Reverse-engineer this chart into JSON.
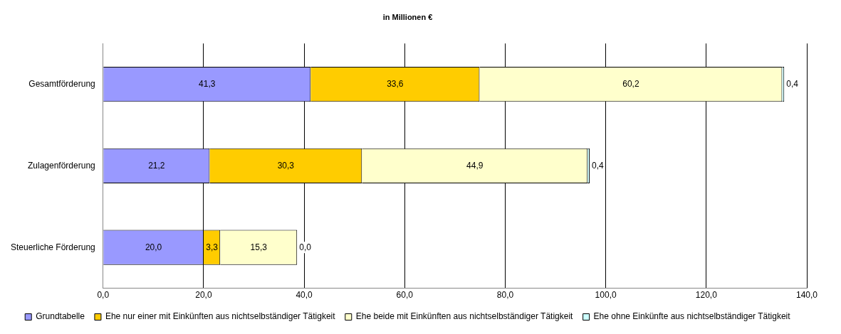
{
  "chart_data": {
    "type": "bar",
    "title": "in Millionen €",
    "orientation": "horizontal",
    "stacked": true,
    "categories": [
      "Gesamtförderung",
      "Zulagenförderung",
      "Steuerliche Förderung"
    ],
    "series": [
      {
        "name": "Grundtabelle",
        "color": "#9999ff",
        "values": [
          41.3,
          21.2,
          20.0
        ],
        "value_labels": [
          "41,3",
          "21,2",
          "20,0"
        ]
      },
      {
        "name": "Ehe nur einer mit Einkünften aus nichtselbständiger Tätigkeit",
        "color": "#ffcc00",
        "values": [
          33.6,
          30.3,
          3.3
        ],
        "value_labels": [
          "33,6",
          "30,3",
          "3,3"
        ]
      },
      {
        "name": "Ehe beide mit Einkünften aus nichtselbständiger Tätigkeit",
        "color": "#ffffcc",
        "values": [
          60.2,
          44.9,
          15.3
        ],
        "value_labels": [
          "60,2",
          "44,9",
          "15,3"
        ]
      },
      {
        "name": "Ehe ohne Einkünfte aus nichtselbständiger Tätigkeit",
        "color": "#ccffff",
        "values": [
          0.4,
          0.4,
          0.0
        ],
        "value_labels": [
          "0,4",
          "0,4",
          "0,0"
        ]
      }
    ],
    "xlim": [
      0,
      140
    ],
    "xticks": [
      {
        "value": 0,
        "label": "0,0"
      },
      {
        "value": 20,
        "label": "20,0"
      },
      {
        "value": 40,
        "label": "40,0"
      },
      {
        "value": 60,
        "label": "60,0"
      },
      {
        "value": 80,
        "label": "80,0"
      },
      {
        "value": 100,
        "label": "100,0"
      },
      {
        "value": 120,
        "label": "120,0"
      },
      {
        "value": 140,
        "label": "140,0"
      }
    ],
    "grid": "x",
    "legend": "bottom"
  }
}
